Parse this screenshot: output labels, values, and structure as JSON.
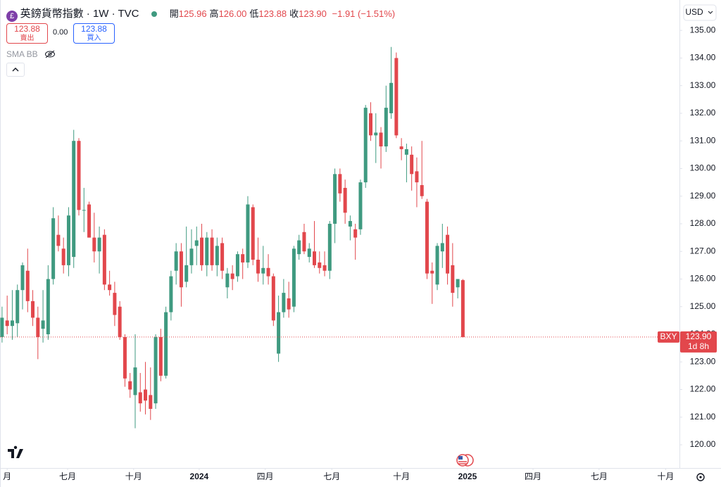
{
  "header": {
    "symbol": "英鎊貨幣指數 · 1W · TVC",
    "ohlc": [
      {
        "label": "開",
        "value": "125.96"
      },
      {
        "label": "高",
        "value": "126.00"
      },
      {
        "label": "低",
        "value": "123.88"
      },
      {
        "label": "收",
        "value": "123.90"
      }
    ],
    "change": "−1.91 (−1.51%)",
    "sell_price": "123.88",
    "sell_label": "賣出",
    "spread": "0.00",
    "buy_price": "123.88",
    "buy_label": "買入",
    "indicator": "SMA BB",
    "currency": "USD"
  },
  "chart_data": {
    "type": "candlestick",
    "up_color": "#3f9a80",
    "down_color": "#e2474c",
    "open": [
      123.9,
      124.5,
      124.3,
      124.4,
      125.6,
      126.3,
      125.2,
      124.6,
      124.2,
      124.0,
      126.0,
      127.6,
      127.1,
      126.5,
      126.8,
      131.0,
      128.5,
      128.7,
      127.5,
      127.0,
      127.6,
      125.8,
      125.5,
      125.0,
      123.9,
      122.3,
      121.8,
      121.9,
      122.0,
      121.8,
      121.5,
      123.9,
      122.5,
      124.8,
      126.3,
      127.0,
      125.9,
      126.5,
      127.2,
      127.5,
      126.5,
      127.5,
      126.5,
      127.3,
      125.7,
      126.2,
      126.1,
      126.9,
      126.6,
      128.6,
      126.7,
      126.2,
      126.4,
      126.1,
      123.3,
      124.8,
      125.3,
      125.0,
      126.9,
      127.7,
      126.8,
      127.0,
      126.6,
      126.5,
      126.3,
      128.0,
      129.8,
      129.3,
      127.9,
      127.8,
      127.8,
      129.5,
      132.0,
      131.2,
      131.3,
      130.8,
      132.0,
      134.0,
      130.8,
      130.5,
      130.5,
      129.9,
      129.4,
      128.8,
      126.3,
      125.8,
      127.0,
      127.6,
      126.5,
      125.7,
      125.96
    ],
    "high": [
      125.0,
      125.4,
      125.6,
      125.8,
      126.6,
      127.1,
      125.6,
      125.0,
      125.6,
      126.5,
      128.6,
      128.3,
      127.5,
      128.6,
      131.4,
      131.1,
      129.3,
      128.8,
      128.4,
      127.9,
      127.8,
      126.3,
      125.9,
      125.2,
      124.0,
      122.6,
      124.0,
      122.6,
      123.0,
      122.8,
      124.0,
      124.2,
      125.0,
      126.3,
      127.3,
      127.3,
      127.9,
      127.8,
      127.9,
      128.0,
      127.7,
      127.8,
      127.5,
      127.5,
      126.4,
      126.5,
      127.0,
      127.1,
      129.0,
      128.7,
      127.5,
      127.2,
      126.9,
      126.2,
      125.4,
      126.0,
      125.9,
      127.2,
      127.6,
      128.0,
      127.3,
      128.1,
      127.0,
      127.0,
      128.1,
      130.0,
      130.0,
      129.6,
      128.3,
      128.0,
      129.6,
      132.3,
      132.4,
      132.0,
      131.5,
      133.0,
      134.4,
      134.2,
      131.1,
      130.9,
      130.8,
      130.4,
      131.0,
      128.9,
      126.6,
      127.3,
      128.0,
      127.9,
      127.3,
      126.0,
      126.0
    ],
    "low": [
      123.7,
      124.0,
      123.8,
      123.9,
      124.9,
      124.8,
      124.3,
      123.1,
      123.7,
      123.8,
      125.8,
      127.0,
      126.2,
      126.1,
      126.4,
      128.3,
      127.7,
      127.5,
      126.6,
      126.2,
      125.6,
      125.4,
      124.3,
      123.8,
      122.1,
      121.7,
      120.6,
      121.2,
      121.1,
      120.9,
      121.3,
      122.3,
      122.4,
      124.5,
      125.8,
      125.0,
      125.7,
      126.2,
      126.5,
      126.3,
      126.1,
      126.3,
      126.1,
      126.0,
      125.3,
      125.6,
      125.9,
      126.0,
      126.4,
      126.5,
      125.9,
      125.8,
      125.8,
      124.3,
      123.0,
      124.6,
      124.6,
      124.8,
      126.7,
      126.9,
      126.6,
      126.4,
      126.2,
      126.1,
      126.0,
      127.3,
      128.8,
      128.0,
      127.4,
      126.7,
      127.6,
      129.3,
      131.0,
      130.2,
      130.0,
      130.6,
      131.8,
      131.1,
      130.3,
      129.5,
      129.2,
      128.6,
      128.9,
      126.0,
      125.1,
      125.6,
      126.4,
      125.8,
      125.0,
      125.3,
      123.88
    ],
    "close": [
      124.6,
      124.3,
      124.5,
      125.6,
      126.5,
      125.2,
      124.6,
      123.9,
      124.5,
      126.0,
      128.2,
      127.2,
      126.5,
      128.3,
      131.0,
      128.5,
      128.5,
      127.5,
      127.0,
      127.5,
      125.8,
      125.6,
      124.7,
      123.9,
      122.4,
      122.0,
      122.8,
      121.5,
      121.6,
      121.3,
      123.9,
      122.5,
      124.8,
      126.1,
      127.0,
      125.7,
      126.5,
      127.1,
      127.4,
      126.5,
      127.5,
      126.5,
      127.2,
      126.3,
      126.2,
      126.0,
      126.9,
      126.6,
      128.7,
      126.7,
      126.2,
      126.4,
      126.1,
      124.5,
      124.8,
      125.5,
      124.9,
      127.1,
      127.4,
      127.0,
      127.1,
      126.5,
      126.4,
      126.3,
      128.0,
      129.8,
      129.1,
      128.4,
      128.1,
      127.5,
      129.5,
      132.2,
      131.2,
      131.3,
      130.8,
      132.2,
      133.1,
      131.2,
      130.7,
      130.7,
      129.8,
      129.5,
      129.0,
      126.2,
      126.2,
      127.2,
      127.3,
      126.2,
      125.5,
      126.0,
      123.9
    ],
    "xlim": [
      -0.4,
      132.3
    ],
    "xticks": [
      {
        "value": 1,
        "label": "月"
      },
      {
        "value": 12.8,
        "label": "七月"
      },
      {
        "value": 25.7,
        "label": "十月"
      },
      {
        "value": 38.5,
        "label": "2024"
      },
      {
        "value": 51.4,
        "label": "四月"
      },
      {
        "value": 64.4,
        "label": "七月"
      },
      {
        "value": 78,
        "label": "十月"
      },
      {
        "value": 90.9,
        "label": "2025"
      },
      {
        "value": 103.7,
        "label": "四月"
      },
      {
        "value": 116.6,
        "label": "七月"
      },
      {
        "value": 129.6,
        "label": "十月"
      }
    ],
    "ylim": [
      119.16,
      136.1
    ],
    "yticks": [
      {
        "value": 120,
        "label": "120.00"
      },
      {
        "value": 121,
        "label": "121.00"
      },
      {
        "value": 122,
        "label": "122.00"
      },
      {
        "value": 123,
        "label": "123.00"
      },
      {
        "value": 124,
        "label": "124.00"
      },
      {
        "value": 125,
        "label": "125.00"
      },
      {
        "value": 126,
        "label": "126.00"
      },
      {
        "value": 127,
        "label": "127.00"
      },
      {
        "value": 128,
        "label": "128.00"
      },
      {
        "value": 129,
        "label": "129.00"
      },
      {
        "value": 130,
        "label": "130.00"
      },
      {
        "value": 131,
        "label": "131.00"
      },
      {
        "value": 132,
        "label": "132.00"
      },
      {
        "value": 133,
        "label": "133.00"
      },
      {
        "value": 134,
        "label": "134.00"
      },
      {
        "value": 135,
        "label": "135.00"
      }
    ],
    "price_tag": {
      "symbol": "BXY",
      "price": "123.90",
      "countdown": "1d 8h"
    }
  }
}
